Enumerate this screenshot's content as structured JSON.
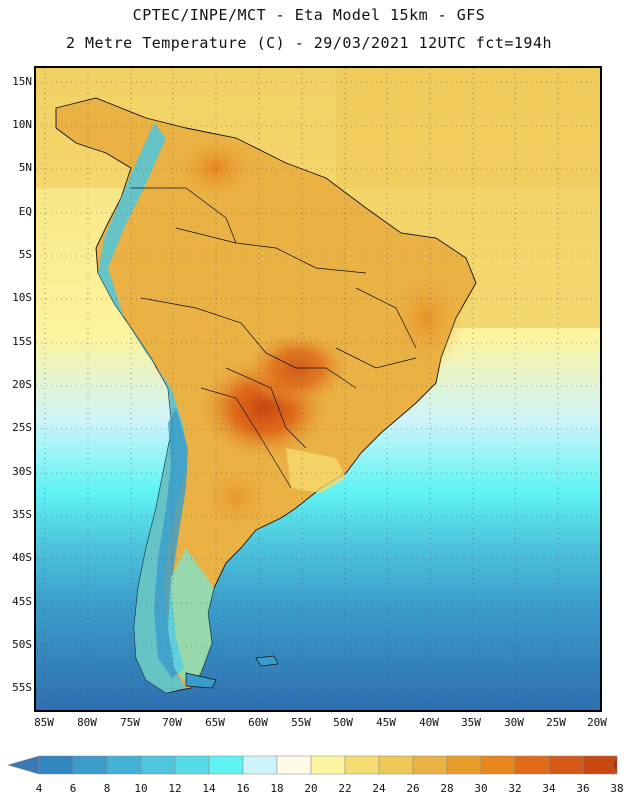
{
  "title": {
    "line1": "CPTEC/INPE/MCT -  Eta Model 15km - GFS",
    "line2": "2 Metre Temperature (C) - 29/03/2021 12UTC fct=194h"
  },
  "map": {
    "lat_labels": [
      "15N",
      "10N",
      "5N",
      "EQ",
      "5S",
      "10S",
      "15S",
      "20S",
      "25S",
      "30S",
      "35S",
      "40S",
      "45S",
      "50S",
      "55S"
    ],
    "lon_labels": [
      "85W",
      "80W",
      "75W",
      "70W",
      "65W",
      "60W",
      "55W",
      "50W",
      "45W",
      "40W",
      "35W",
      "30W",
      "25W",
      "20W"
    ]
  },
  "colorbar": {
    "labels": [
      "4",
      "6",
      "8",
      "10",
      "12",
      "14",
      "16",
      "18",
      "20",
      "22",
      "24",
      "26",
      "28",
      "30",
      "32",
      "34",
      "36",
      "38"
    ],
    "colors": [
      "#3b78b8",
      "#2f86c0",
      "#3a9ccb",
      "#44b2d6",
      "#4fc6dd",
      "#57dbe6",
      "#5ff3f3",
      "#cdf4fb",
      "#fffbe6",
      "#fdf4a0",
      "#f5dc72",
      "#eec957",
      "#eab245",
      "#e89d2a",
      "#e8851d",
      "#e06c1a",
      "#d55a1a",
      "#c94710",
      "#b3300a"
    ]
  }
}
